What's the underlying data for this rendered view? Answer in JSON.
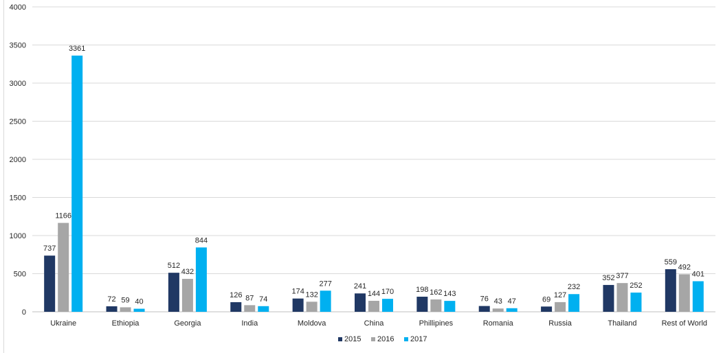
{
  "chart_data": {
    "type": "bar",
    "categories": [
      "Ukraine",
      "Ethiopia",
      "Georgia",
      "India",
      "Moldova",
      "China",
      "Phillipines",
      "Romania",
      "Russia",
      "Thailand",
      "Rest of World"
    ],
    "series": [
      {
        "name": "2015",
        "values": [
          737,
          72,
          512,
          126,
          174,
          241,
          198,
          76,
          69,
          352,
          559
        ],
        "color": "#203864"
      },
      {
        "name": "2016",
        "values": [
          1166,
          59,
          432,
          87,
          132,
          144,
          162,
          43,
          127,
          377,
          492
        ],
        "color": "#a6a6a6"
      },
      {
        "name": "2017",
        "values": [
          3361,
          40,
          844,
          74,
          277,
          170,
          143,
          47,
          232,
          252,
          401
        ],
        "color": "#00b0f0"
      }
    ],
    "ylim": [
      0,
      4000
    ],
    "yticks": [
      "0",
      "500",
      "1000",
      "1500",
      "2000",
      "2500",
      "3000",
      "3500",
      "4000"
    ],
    "grid": true,
    "legend": "bottom-center"
  }
}
